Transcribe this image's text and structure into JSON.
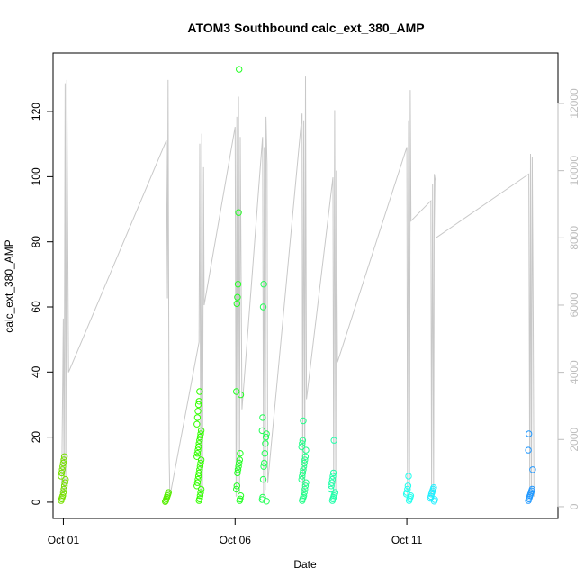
{
  "chart_data": {
    "type": "scatter",
    "title": "ATOM3 Southbound calc_ext_380_AMP",
    "xlabel": "Date",
    "ylabel": "calc_ext_380_AMP",
    "x_ticks": [
      "Oct 01",
      "Oct 06",
      "Oct 11"
    ],
    "y_ticks": [
      0,
      20,
      40,
      60,
      80,
      100,
      120
    ],
    "y2_ticks": [
      0,
      2000,
      4000,
      6000,
      8000,
      10000,
      12000
    ],
    "x_range_days": [
      -0.3,
      14.4
    ],
    "ylim": [
      -5,
      138
    ],
    "y2lim": [
      -350,
      13500
    ],
    "grid": false,
    "secondary_series_color": "#c8c8c8",
    "point_clusters": [
      {
        "day": 0.0,
        "values": [
          0.5,
          1,
          1.5,
          2,
          3,
          4,
          5,
          6,
          7,
          8,
          9,
          10,
          11,
          12,
          13,
          14
        ],
        "color": "#77e000"
      },
      {
        "day": 3.0,
        "values": [
          0.2,
          0.5,
          1,
          1.5,
          2,
          2.5,
          3
        ],
        "color": "#55ee00"
      },
      {
        "day": 3.95,
        "values": [
          0.5,
          1,
          2,
          3,
          4,
          5,
          6,
          7,
          8,
          9,
          10,
          11,
          12,
          13,
          14,
          15,
          16,
          17,
          18,
          19,
          20,
          21,
          22,
          24,
          26,
          28,
          30,
          31,
          34
        ],
        "color": "#33ff00"
      },
      {
        "day": 5.1,
        "values": [
          0.5,
          1,
          2,
          4,
          5,
          9,
          10,
          11,
          12,
          13,
          15,
          33,
          34,
          61,
          63,
          67,
          89,
          133
        ],
        "color": "#22ff22"
      },
      {
        "day": 5.85,
        "values": [
          0.3,
          0.8,
          1.5,
          7,
          11,
          12,
          15,
          18,
          20,
          21,
          22,
          26,
          60,
          67
        ],
        "color": "#22ff55"
      },
      {
        "day": 7.0,
        "values": [
          0.5,
          1,
          1.5,
          2,
          3,
          4,
          5,
          6,
          7,
          8,
          9,
          10,
          11,
          12,
          13,
          14,
          16,
          17,
          18,
          19,
          25
        ],
        "color": "#22ff88"
      },
      {
        "day": 7.85,
        "values": [
          0.5,
          1,
          1.5,
          2,
          2.5,
          3,
          4,
          5,
          6,
          7,
          8,
          9,
          19
        ],
        "color": "#22ffaa"
      },
      {
        "day": 10.05,
        "values": [
          0.5,
          1,
          1.5,
          2,
          2.5,
          3,
          4,
          5,
          8
        ],
        "color": "#22ffee"
      },
      {
        "day": 10.75,
        "values": [
          0.3,
          0.8,
          1.2,
          1.8,
          2.5,
          3,
          3.5,
          4,
          4.5
        ],
        "color": "#22eeff"
      },
      {
        "day": 13.6,
        "values": [
          0.5,
          1,
          1.5,
          2,
          2.5,
          3,
          3.5,
          4,
          10,
          16,
          21
        ],
        "color": "#2299ff"
      }
    ],
    "secondary_series": [
      [
        -0.05,
        300
      ],
      [
        0.0,
        5600
      ],
      [
        0.02,
        400
      ],
      [
        0.05,
        12600
      ],
      [
        0.07,
        500
      ],
      [
        0.1,
        12700
      ],
      [
        0.15,
        4000
      ],
      [
        3.0,
        10900
      ],
      [
        3.03,
        6200
      ],
      [
        3.05,
        12700
      ],
      [
        3.08,
        1500
      ],
      [
        3.1,
        300
      ],
      [
        3.95,
        4900
      ],
      [
        3.97,
        10800
      ],
      [
        4.0,
        300
      ],
      [
        4.03,
        11100
      ],
      [
        4.05,
        400
      ],
      [
        4.08,
        10100
      ],
      [
        4.1,
        6000
      ],
      [
        5.0,
        11300
      ],
      [
        5.03,
        300
      ],
      [
        5.05,
        11600
      ],
      [
        5.08,
        500
      ],
      [
        5.1,
        12200
      ],
      [
        5.13,
        400
      ],
      [
        5.15,
        11000
      ],
      [
        5.2,
        2900
      ],
      [
        5.8,
        11000
      ],
      [
        5.83,
        300
      ],
      [
        5.85,
        10700
      ],
      [
        5.88,
        500
      ],
      [
        5.9,
        11600
      ],
      [
        5.93,
        10200
      ],
      [
        5.95,
        700
      ],
      [
        6.95,
        11700
      ],
      [
        6.97,
        300
      ],
      [
        7.0,
        11500
      ],
      [
        7.03,
        500
      ],
      [
        7.05,
        12800
      ],
      [
        7.08,
        3200
      ],
      [
        7.85,
        9800
      ],
      [
        7.87,
        300
      ],
      [
        7.9,
        11800
      ],
      [
        7.93,
        500
      ],
      [
        7.95,
        10000
      ],
      [
        7.98,
        4300
      ],
      [
        10.0,
        10700
      ],
      [
        10.02,
        300
      ],
      [
        10.05,
        11500
      ],
      [
        10.08,
        500
      ],
      [
        10.1,
        12400
      ],
      [
        10.12,
        8500
      ],
      [
        10.7,
        9100
      ],
      [
        10.72,
        300
      ],
      [
        10.75,
        9600
      ],
      [
        10.78,
        400
      ],
      [
        10.8,
        9900
      ],
      [
        10.83,
        9700
      ],
      [
        10.85,
        8000
      ],
      [
        13.55,
        9900
      ],
      [
        13.58,
        300
      ],
      [
        13.6,
        10500
      ],
      [
        13.63,
        400
      ],
      [
        13.65,
        10400
      ],
      [
        13.68,
        5400
      ],
      [
        13.7,
        300
      ]
    ]
  }
}
